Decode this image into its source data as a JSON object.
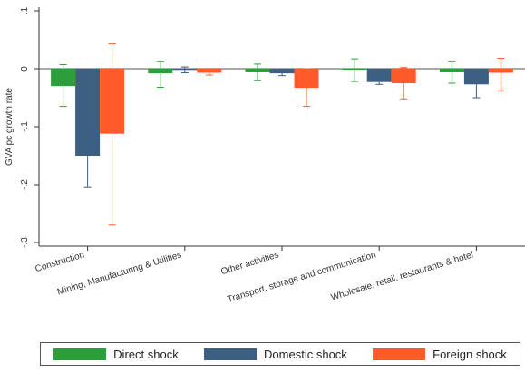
{
  "chart_data": {
    "type": "bar",
    "title": "",
    "xlabel": "",
    "ylabel": "GVA pc growth rate",
    "ylim": [
      -0.3,
      0.1
    ],
    "yticks": [
      ".1",
      "0",
      "-.1",
      "-.2",
      "-.3"
    ],
    "grid": false,
    "legend_position": "bottom",
    "categories": [
      "Construction",
      "Mining, Manufacturing & Utilities",
      "Other activities",
      "Transport, storage and communication",
      "Wholesale, retail, restaurants & hotel"
    ],
    "series": [
      {
        "name": "Direct shock",
        "color": "#2e9e3c",
        "values": [
          -0.03,
          -0.008,
          -0.005,
          0.0,
          -0.005
        ],
        "ci_low": [
          -0.065,
          -0.032,
          -0.02,
          -0.022,
          -0.025
        ],
        "ci_high": [
          0.007,
          0.013,
          0.008,
          0.017,
          0.013
        ]
      },
      {
        "name": "Domestic shock",
        "color": "#3d5f82",
        "values": [
          -0.15,
          -0.002,
          -0.008,
          -0.023,
          -0.027
        ],
        "ci_low": [
          -0.205,
          -0.007,
          -0.012,
          -0.027,
          -0.05
        ],
        "ci_high": [
          -0.093,
          0.003,
          -0.003,
          -0.018,
          -0.005
        ]
      },
      {
        "name": "Foreign shock",
        "color": "#ff5a2a",
        "values": [
          -0.112,
          -0.007,
          -0.033,
          -0.025,
          -0.007
        ],
        "ci_low": [
          -0.27,
          -0.011,
          -0.065,
          -0.052,
          -0.038
        ],
        "ci_high": [
          0.043,
          -0.003,
          0.0,
          0.002,
          0.018
        ]
      }
    ]
  }
}
